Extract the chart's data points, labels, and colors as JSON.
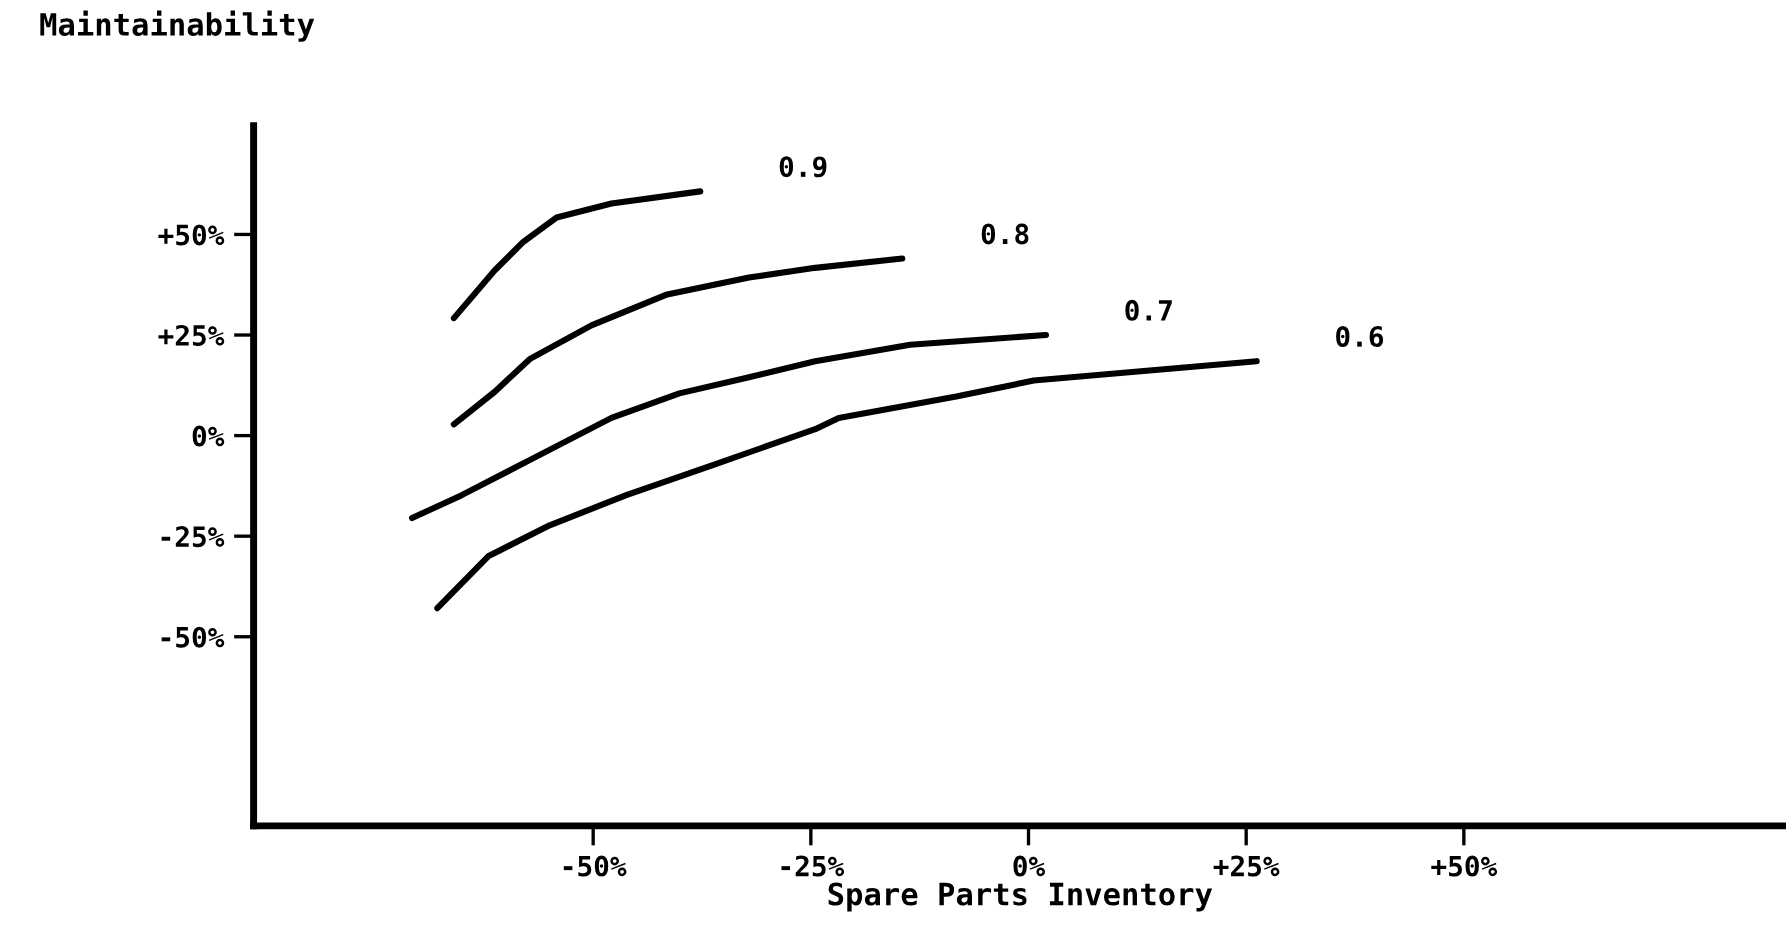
{
  "chart_data": {
    "type": "line",
    "ylabel": "Maintainability",
    "xlabel": "Spare Parts Inventory",
    "xlim": [
      -89,
      87
    ],
    "ylim": [
      -97,
      77
    ],
    "xticks": [
      {
        "value": -50,
        "label": "-50%"
      },
      {
        "value": -25,
        "label": "-25%"
      },
      {
        "value": 0,
        "label": "0%"
      },
      {
        "value": 25,
        "label": "+25%"
      },
      {
        "value": 50,
        "label": "+50%"
      }
    ],
    "yticks": [
      {
        "value": -50,
        "label": "-50%"
      },
      {
        "value": -25,
        "label": "-25%"
      },
      {
        "value": 0,
        "label": "0%"
      },
      {
        "value": 25,
        "label": "+25%"
      },
      {
        "value": 50,
        "label": "+50%"
      }
    ],
    "grid": false,
    "legend": false,
    "marker": "none",
    "line_style": "solid",
    "series": [
      {
        "name": "0.9",
        "color": "#000000",
        "x": [
          -66,
          -61.3,
          -58,
          -54.2,
          -47.9,
          -37.7
        ],
        "values": [
          29.2,
          41.1,
          48.2,
          54.2,
          57.7,
          60.7
        ]
      },
      {
        "name": "0.8",
        "color": "#000000",
        "x": [
          -66,
          -61.3,
          -57.3,
          -50.2,
          -41.5,
          -32.1,
          -24.5,
          -14.5
        ],
        "values": [
          2.8,
          10.9,
          19,
          27.4,
          35.1,
          39.3,
          41.7,
          44
        ]
      },
      {
        "name": "0.7",
        "color": "#000000",
        "x": [
          -70.8,
          -65.1,
          -57.3,
          -47.9,
          -40.1,
          -32.1,
          -24.5,
          -13.6,
          2.0
        ],
        "values": [
          -20.5,
          -14.8,
          -6.1,
          4.4,
          10.5,
          14.5,
          18.5,
          22.6,
          25
        ]
      },
      {
        "name": "0.6",
        "color": "#000000",
        "x": [
          -67.9,
          -62,
          -55,
          -46.2,
          -36.1,
          -24.5,
          -21.8,
          -8.3,
          0.6,
          26.2
        ],
        "values": [
          -42.9,
          -29.9,
          -22.3,
          -14.8,
          -7.2,
          1.6,
          4.4,
          9.7,
          13.7,
          18.5
        ]
      }
    ]
  }
}
